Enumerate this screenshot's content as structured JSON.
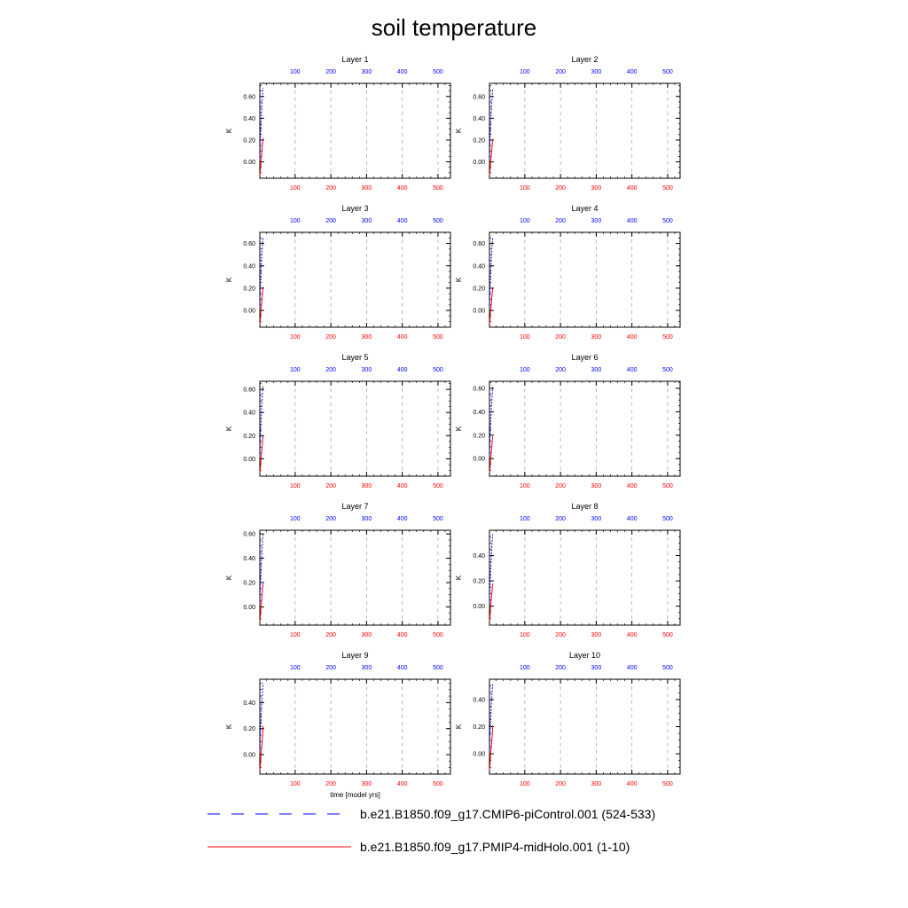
{
  "title": "soil temperature",
  "legend": {
    "placement": "bottom",
    "entries": [
      {
        "label": "b.e21.B1850.f09_g17.CMIP6-piControl.001 (524-533)",
        "color": "#0000ff",
        "style": "dashed"
      },
      {
        "label": "b.e21.B1850.f09_g17.PMIP4-midHolo.001 (1-10)",
        "color": "#ff0000",
        "style": "solid"
      }
    ]
  },
  "colors": {
    "top_axis": "#0000ff",
    "bottom_axis": "#ff0000",
    "frame": "#000000",
    "grid": "#aaaaaa"
  },
  "chart_data": [
    {
      "type": "line",
      "title": "Layer 1",
      "ylabel": "K",
      "xlabel": "",
      "ylim": [
        -0.15,
        0.72
      ],
      "yticks": [
        0.0,
        0.2,
        0.4,
        0.6
      ],
      "ytick_labels": [
        "0.00",
        "0.20",
        "0.40",
        "0.60"
      ],
      "xlim": [
        1,
        535
      ],
      "xticks": [
        100,
        200,
        300,
        400,
        500
      ],
      "xtick_labels": [
        "100",
        "200",
        "300",
        "400",
        "500"
      ],
      "grid": true,
      "series": [
        {
          "color": "#0000ff",
          "style": "dashed",
          "x": [
            1,
            2,
            3,
            4,
            5,
            6,
            7,
            8,
            9,
            10
          ],
          "y": [
            0.02,
            0.18,
            0.25,
            0.33,
            0.4,
            0.47,
            0.53,
            0.59,
            0.64,
            0.68
          ]
        },
        {
          "color": "#ff0000",
          "style": "solid",
          "x": [
            1,
            2,
            3,
            4,
            5,
            6,
            7,
            8,
            9,
            10
          ],
          "y": [
            -0.12,
            -0.1,
            -0.06,
            -0.02,
            0.02,
            0.06,
            0.1,
            0.14,
            0.18,
            0.22
          ]
        }
      ]
    },
    {
      "type": "line",
      "title": "Layer 2",
      "ylabel": "K",
      "xlabel": "",
      "ylim": [
        -0.15,
        0.72
      ],
      "yticks": [
        0.0,
        0.2,
        0.4,
        0.6
      ],
      "ytick_labels": [
        "0.00",
        "0.20",
        "0.40",
        "0.60"
      ],
      "xlim": [
        1,
        535
      ],
      "xticks": [
        100,
        200,
        300,
        400,
        500
      ],
      "xtick_labels": [
        "100",
        "200",
        "300",
        "400",
        "500"
      ],
      "grid": true,
      "series": [
        {
          "color": "#0000ff",
          "style": "dashed",
          "x": [
            1,
            2,
            3,
            4,
            5,
            6,
            7,
            8,
            9,
            10
          ],
          "y": [
            0.02,
            0.17,
            0.24,
            0.32,
            0.39,
            0.46,
            0.52,
            0.58,
            0.63,
            0.67
          ]
        },
        {
          "color": "#ff0000",
          "style": "solid",
          "x": [
            1,
            2,
            3,
            4,
            5,
            6,
            7,
            8,
            9,
            10
          ],
          "y": [
            -0.12,
            -0.1,
            -0.06,
            -0.02,
            0.02,
            0.06,
            0.09,
            0.13,
            0.17,
            0.21
          ]
        }
      ]
    },
    {
      "type": "line",
      "title": "Layer 3",
      "ylabel": "K",
      "xlabel": "",
      "ylim": [
        -0.15,
        0.7
      ],
      "yticks": [
        0.0,
        0.2,
        0.4,
        0.6
      ],
      "ytick_labels": [
        "0.00",
        "0.20",
        "0.40",
        "0.60"
      ],
      "xlim": [
        1,
        535
      ],
      "xticks": [
        100,
        200,
        300,
        400,
        500
      ],
      "xtick_labels": [
        "100",
        "200",
        "300",
        "400",
        "500"
      ],
      "grid": true,
      "series": [
        {
          "color": "#0000ff",
          "style": "dashed",
          "x": [
            1,
            2,
            3,
            4,
            5,
            6,
            7,
            8,
            9,
            10
          ],
          "y": [
            0.02,
            0.17,
            0.24,
            0.31,
            0.38,
            0.45,
            0.51,
            0.57,
            0.62,
            0.66
          ]
        },
        {
          "color": "#ff0000",
          "style": "solid",
          "x": [
            1,
            2,
            3,
            4,
            5,
            6,
            7,
            8,
            9,
            10
          ],
          "y": [
            -0.12,
            -0.1,
            -0.06,
            -0.02,
            0.02,
            0.06,
            0.09,
            0.13,
            0.17,
            0.21
          ]
        }
      ]
    },
    {
      "type": "line",
      "title": "Layer 4",
      "ylabel": "K",
      "xlabel": "",
      "ylim": [
        -0.15,
        0.7
      ],
      "yticks": [
        0.0,
        0.2,
        0.4,
        0.6
      ],
      "ytick_labels": [
        "0.00",
        "0.20",
        "0.40",
        "0.60"
      ],
      "xlim": [
        1,
        535
      ],
      "xticks": [
        100,
        200,
        300,
        400,
        500
      ],
      "xtick_labels": [
        "100",
        "200",
        "300",
        "400",
        "500"
      ],
      "grid": true,
      "series": [
        {
          "color": "#0000ff",
          "style": "dashed",
          "x": [
            1,
            2,
            3,
            4,
            5,
            6,
            7,
            8,
            9,
            10
          ],
          "y": [
            0.02,
            0.16,
            0.23,
            0.3,
            0.37,
            0.44,
            0.5,
            0.56,
            0.61,
            0.65
          ]
        },
        {
          "color": "#ff0000",
          "style": "solid",
          "x": [
            1,
            2,
            3,
            4,
            5,
            6,
            7,
            8,
            9,
            10
          ],
          "y": [
            -0.12,
            -0.1,
            -0.06,
            -0.02,
            0.02,
            0.05,
            0.09,
            0.13,
            0.17,
            0.2
          ]
        }
      ]
    },
    {
      "type": "line",
      "title": "Layer 5",
      "ylabel": "K",
      "xlabel": "",
      "ylim": [
        -0.15,
        0.67
      ],
      "yticks": [
        0.0,
        0.2,
        0.4,
        0.6
      ],
      "ytick_labels": [
        "0.00",
        "0.20",
        "0.40",
        "0.60"
      ],
      "xlim": [
        1,
        535
      ],
      "xticks": [
        100,
        200,
        300,
        400,
        500
      ],
      "xtick_labels": [
        "100",
        "200",
        "300",
        "400",
        "500"
      ],
      "grid": true,
      "series": [
        {
          "color": "#0000ff",
          "style": "dashed",
          "x": [
            1,
            2,
            3,
            4,
            5,
            6,
            7,
            8,
            9,
            10
          ],
          "y": [
            0.02,
            0.16,
            0.22,
            0.29,
            0.36,
            0.42,
            0.48,
            0.54,
            0.59,
            0.63
          ]
        },
        {
          "color": "#ff0000",
          "style": "solid",
          "x": [
            1,
            2,
            3,
            4,
            5,
            6,
            7,
            8,
            9,
            10
          ],
          "y": [
            -0.12,
            -0.1,
            -0.06,
            -0.02,
            0.02,
            0.05,
            0.09,
            0.12,
            0.16,
            0.2
          ]
        }
      ]
    },
    {
      "type": "line",
      "title": "Layer 6",
      "ylabel": "K",
      "xlabel": "",
      "ylim": [
        -0.15,
        0.66
      ],
      "yticks": [
        0.0,
        0.2,
        0.4,
        0.6
      ],
      "ytick_labels": [
        "0.00",
        "0.20",
        "0.40",
        "0.60"
      ],
      "xlim": [
        1,
        535
      ],
      "xticks": [
        100,
        200,
        300,
        400,
        500
      ],
      "xtick_labels": [
        "100",
        "200",
        "300",
        "400",
        "500"
      ],
      "grid": true,
      "series": [
        {
          "color": "#0000ff",
          "style": "dashed",
          "x": [
            1,
            2,
            3,
            4,
            5,
            6,
            7,
            8,
            9,
            10
          ],
          "y": [
            0.02,
            0.15,
            0.22,
            0.28,
            0.35,
            0.41,
            0.47,
            0.52,
            0.57,
            0.61
          ]
        },
        {
          "color": "#ff0000",
          "style": "solid",
          "x": [
            1,
            2,
            3,
            4,
            5,
            6,
            7,
            8,
            9,
            10
          ],
          "y": [
            -0.12,
            -0.1,
            -0.06,
            -0.02,
            0.02,
            0.05,
            0.08,
            0.12,
            0.16,
            0.19
          ]
        }
      ]
    },
    {
      "type": "line",
      "title": "Layer 7",
      "ylabel": "K",
      "xlabel": "",
      "ylim": [
        -0.15,
        0.63
      ],
      "yticks": [
        0.0,
        0.2,
        0.4,
        0.6
      ],
      "ytick_labels": [
        "0.00",
        "0.20",
        "0.40",
        "0.60"
      ],
      "xlim": [
        1,
        535
      ],
      "xticks": [
        100,
        200,
        300,
        400,
        500
      ],
      "xtick_labels": [
        "100",
        "200",
        "300",
        "400",
        "500"
      ],
      "grid": true,
      "series": [
        {
          "color": "#0000ff",
          "style": "dashed",
          "x": [
            1,
            2,
            3,
            4,
            5,
            6,
            7,
            8,
            9,
            10
          ],
          "y": [
            0.02,
            0.15,
            0.21,
            0.27,
            0.34,
            0.4,
            0.45,
            0.5,
            0.55,
            0.59
          ]
        },
        {
          "color": "#ff0000",
          "style": "solid",
          "x": [
            1,
            2,
            3,
            4,
            5,
            6,
            7,
            8,
            9,
            10
          ],
          "y": [
            -0.12,
            -0.1,
            -0.06,
            -0.02,
            0.02,
            0.05,
            0.08,
            0.12,
            0.16,
            0.19
          ]
        }
      ]
    },
    {
      "type": "line",
      "title": "Layer 8",
      "ylabel": "K",
      "xlabel": "",
      "ylim": [
        -0.15,
        0.6
      ],
      "yticks": [
        0.0,
        0.2,
        0.4
      ],
      "ytick_labels": [
        "0.00",
        "0.20",
        "0.40"
      ],
      "xlim": [
        1,
        535
      ],
      "xticks": [
        100,
        200,
        300,
        400,
        500
      ],
      "xtick_labels": [
        "100",
        "200",
        "300",
        "400",
        "500"
      ],
      "grid": true,
      "series": [
        {
          "color": "#0000ff",
          "style": "dashed",
          "x": [
            1,
            2,
            3,
            4,
            5,
            6,
            7,
            8,
            9,
            10
          ],
          "y": [
            0.02,
            0.14,
            0.2,
            0.26,
            0.32,
            0.38,
            0.43,
            0.48,
            0.53,
            0.57
          ]
        },
        {
          "color": "#ff0000",
          "style": "solid",
          "x": [
            1,
            2,
            3,
            4,
            5,
            6,
            7,
            8,
            9,
            10
          ],
          "y": [
            -0.12,
            -0.1,
            -0.06,
            -0.02,
            0.02,
            0.05,
            0.08,
            0.11,
            0.15,
            0.18
          ]
        }
      ]
    },
    {
      "type": "line",
      "title": "Layer 9",
      "ylabel": "K",
      "xlabel": "time [model yrs]",
      "ylim": [
        -0.15,
        0.58
      ],
      "yticks": [
        0.0,
        0.2,
        0.4
      ],
      "ytick_labels": [
        "0.00",
        "0.20",
        "0.40"
      ],
      "xlim": [
        1,
        535
      ],
      "xticks": [
        100,
        200,
        300,
        400,
        500
      ],
      "xtick_labels": [
        "100",
        "200",
        "300",
        "400",
        "500"
      ],
      "grid": true,
      "series": [
        {
          "color": "#0000ff",
          "style": "dashed",
          "x": [
            1,
            2,
            3,
            4,
            5,
            6,
            7,
            8,
            9,
            10
          ],
          "y": [
            0.02,
            0.14,
            0.19,
            0.25,
            0.31,
            0.36,
            0.41,
            0.46,
            0.51,
            0.55
          ]
        },
        {
          "color": "#ff0000",
          "style": "solid",
          "x": [
            1,
            2,
            3,
            4,
            5,
            6,
            7,
            8,
            9,
            10
          ],
          "y": [
            -0.12,
            -0.1,
            -0.06,
            -0.02,
            0.02,
            0.05,
            0.08,
            0.11,
            0.15,
            0.22
          ]
        }
      ]
    },
    {
      "type": "line",
      "title": "Layer 10",
      "ylabel": "K",
      "xlabel": "",
      "ylim": [
        -0.15,
        0.55
      ],
      "yticks": [
        0.0,
        0.2,
        0.4
      ],
      "ytick_labels": [
        "0.00",
        "0.20",
        "0.40"
      ],
      "xlim": [
        1,
        535
      ],
      "xticks": [
        100,
        200,
        300,
        400,
        500
      ],
      "xtick_labels": [
        "100",
        "200",
        "300",
        "400",
        "500"
      ],
      "grid": true,
      "series": [
        {
          "color": "#0000ff",
          "style": "dashed",
          "x": [
            1,
            2,
            3,
            4,
            5,
            6,
            7,
            8,
            9,
            10
          ],
          "y": [
            0.02,
            0.13,
            0.18,
            0.24,
            0.29,
            0.34,
            0.39,
            0.44,
            0.48,
            0.52
          ]
        },
        {
          "color": "#ff0000",
          "style": "solid",
          "x": [
            1,
            2,
            3,
            4,
            5,
            6,
            7,
            8,
            9,
            10
          ],
          "y": [
            -0.12,
            -0.1,
            -0.06,
            -0.02,
            0.02,
            0.05,
            0.08,
            0.11,
            0.15,
            0.21
          ]
        }
      ]
    }
  ]
}
